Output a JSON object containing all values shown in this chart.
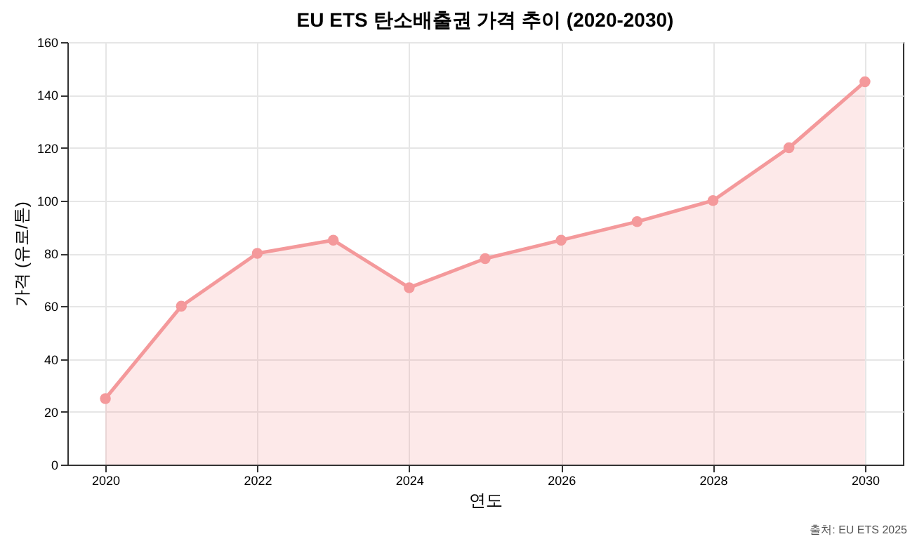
{
  "chart_data": {
    "type": "area",
    "title": "EU ETS 탄소배출권 가격 추이 (2020-2030)",
    "xlabel": "연도",
    "ylabel": "가격 (유로/톤)",
    "x": [
      2020,
      2021,
      2022,
      2023,
      2024,
      2025,
      2026,
      2027,
      2028,
      2029,
      2030
    ],
    "series": [
      {
        "color": "#f4999b",
        "values": [
          25,
          60,
          80,
          85,
          67,
          78,
          85,
          92,
          100,
          120,
          145
        ]
      }
    ],
    "xlim": [
      2019.5,
      2030.5
    ],
    "xticks": [
      2020,
      2022,
      2024,
      2026,
      2028,
      2030
    ],
    "ylim": [
      0,
      160
    ],
    "yticks": [
      0,
      20,
      40,
      60,
      80,
      100,
      120,
      140,
      160
    ],
    "grid": true,
    "marker": "circle",
    "line_style": "solid",
    "annotations": [
      "출처: EU ETS 2025"
    ]
  }
}
